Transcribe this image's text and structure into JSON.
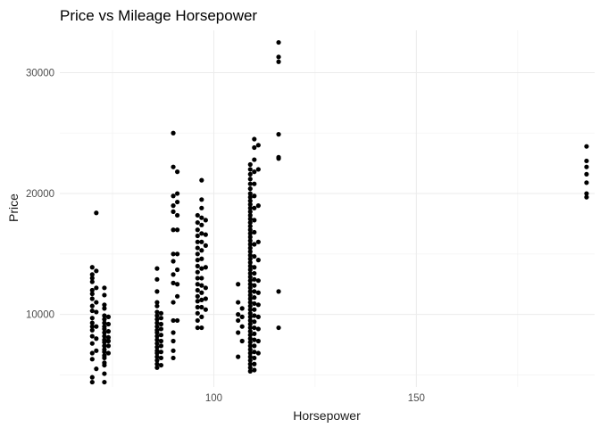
{
  "chart_data": {
    "type": "scatter",
    "title": "Price vs Mileage Horsepower",
    "xlabel": "Horsepower",
    "ylabel": "Price",
    "xlim": [
      62,
      194
    ],
    "ylim": [
      4000,
      33500
    ],
    "x_ticks": [
      100,
      150
    ],
    "x_tick_labels": [
      "100",
      "150"
    ],
    "y_ticks": [
      10000,
      20000,
      30000
    ],
    "y_tick_labels": [
      "10000",
      "20000",
      "30000"
    ],
    "grid": true,
    "theme": "minimal",
    "point_color": "#000000",
    "series": [
      {
        "points": [
          {
            "x": 70,
            "y": 4400
          },
          {
            "x": 70,
            "y": 4800
          },
          {
            "x": 70,
            "y": 6300
          },
          {
            "x": 70,
            "y": 6800
          },
          {
            "x": 70,
            "y": 7600
          },
          {
            "x": 70,
            "y": 8200
          },
          {
            "x": 70,
            "y": 8700
          },
          {
            "x": 70,
            "y": 9000
          },
          {
            "x": 70,
            "y": 9300
          },
          {
            "x": 70,
            "y": 9700
          },
          {
            "x": 70,
            "y": 10300
          },
          {
            "x": 70,
            "y": 10700
          },
          {
            "x": 70,
            "y": 11300
          },
          {
            "x": 70,
            "y": 11700
          },
          {
            "x": 70,
            "y": 12000
          },
          {
            "x": 70,
            "y": 12700
          },
          {
            "x": 70,
            "y": 13000
          },
          {
            "x": 70,
            "y": 13300
          },
          {
            "x": 70,
            "y": 13900
          },
          {
            "x": 71,
            "y": 5500
          },
          {
            "x": 71,
            "y": 7000
          },
          {
            "x": 71,
            "y": 8000
          },
          {
            "x": 71,
            "y": 9000
          },
          {
            "x": 71,
            "y": 10200
          },
          {
            "x": 71,
            "y": 11000
          },
          {
            "x": 71,
            "y": 12200
          },
          {
            "x": 71,
            "y": 13600
          },
          {
            "x": 71,
            "y": 18400
          },
          {
            "x": 73,
            "y": 4400
          },
          {
            "x": 73,
            "y": 5100
          },
          {
            "x": 73,
            "y": 5800
          },
          {
            "x": 73,
            "y": 6000
          },
          {
            "x": 73,
            "y": 6400
          },
          {
            "x": 73,
            "y": 6600
          },
          {
            "x": 73,
            "y": 6900
          },
          {
            "x": 73,
            "y": 7100
          },
          {
            "x": 73,
            "y": 7400
          },
          {
            "x": 73,
            "y": 7700
          },
          {
            "x": 73,
            "y": 7900
          },
          {
            "x": 73,
            "y": 8200
          },
          {
            "x": 73,
            "y": 8500
          },
          {
            "x": 73,
            "y": 8800
          },
          {
            "x": 73,
            "y": 9000
          },
          {
            "x": 73,
            "y": 9300
          },
          {
            "x": 73,
            "y": 9600
          },
          {
            "x": 73,
            "y": 9900
          },
          {
            "x": 73,
            "y": 10500
          },
          {
            "x": 73,
            "y": 10800
          },
          {
            "x": 73,
            "y": 11600
          },
          {
            "x": 73,
            "y": 12200
          },
          {
            "x": 74,
            "y": 6800
          },
          {
            "x": 74,
            "y": 7400
          },
          {
            "x": 74,
            "y": 7800
          },
          {
            "x": 74,
            "y": 8100
          },
          {
            "x": 74,
            "y": 8600
          },
          {
            "x": 74,
            "y": 9200
          },
          {
            "x": 74,
            "y": 9800
          },
          {
            "x": 86,
            "y": 5600
          },
          {
            "x": 86,
            "y": 5900
          },
          {
            "x": 86,
            "y": 6200
          },
          {
            "x": 86,
            "y": 6500
          },
          {
            "x": 86,
            "y": 6800
          },
          {
            "x": 86,
            "y": 7000
          },
          {
            "x": 86,
            "y": 7300
          },
          {
            "x": 86,
            "y": 7600
          },
          {
            "x": 86,
            "y": 7900
          },
          {
            "x": 86,
            "y": 8200
          },
          {
            "x": 86,
            "y": 8500
          },
          {
            "x": 86,
            "y": 8700
          },
          {
            "x": 86,
            "y": 9000
          },
          {
            "x": 86,
            "y": 9300
          },
          {
            "x": 86,
            "y": 9600
          },
          {
            "x": 86,
            "y": 9900
          },
          {
            "x": 86,
            "y": 10200
          },
          {
            "x": 86,
            "y": 10700
          },
          {
            "x": 86,
            "y": 11000
          },
          {
            "x": 86,
            "y": 11900
          },
          {
            "x": 86,
            "y": 12900
          },
          {
            "x": 86,
            "y": 13800
          },
          {
            "x": 87,
            "y": 5800
          },
          {
            "x": 87,
            "y": 6400
          },
          {
            "x": 87,
            "y": 6900
          },
          {
            "x": 87,
            "y": 7400
          },
          {
            "x": 87,
            "y": 7800
          },
          {
            "x": 87,
            "y": 8300
          },
          {
            "x": 87,
            "y": 8800
          },
          {
            "x": 87,
            "y": 9200
          },
          {
            "x": 87,
            "y": 9700
          },
          {
            "x": 87,
            "y": 10100
          },
          {
            "x": 90,
            "y": 6400
          },
          {
            "x": 90,
            "y": 7000
          },
          {
            "x": 90,
            "y": 7800
          },
          {
            "x": 90,
            "y": 8500
          },
          {
            "x": 90,
            "y": 9500
          },
          {
            "x": 90,
            "y": 11000
          },
          {
            "x": 90,
            "y": 12600
          },
          {
            "x": 90,
            "y": 13300
          },
          {
            "x": 90,
            "y": 14400
          },
          {
            "x": 90,
            "y": 15000
          },
          {
            "x": 90,
            "y": 17000
          },
          {
            "x": 90,
            "y": 18500
          },
          {
            "x": 90,
            "y": 19000
          },
          {
            "x": 90,
            "y": 19800
          },
          {
            "x": 90,
            "y": 22200
          },
          {
            "x": 90,
            "y": 25000
          },
          {
            "x": 91,
            "y": 9500
          },
          {
            "x": 91,
            "y": 11500
          },
          {
            "x": 91,
            "y": 12500
          },
          {
            "x": 91,
            "y": 13700
          },
          {
            "x": 91,
            "y": 15000
          },
          {
            "x": 91,
            "y": 17000
          },
          {
            "x": 91,
            "y": 18200
          },
          {
            "x": 91,
            "y": 19300
          },
          {
            "x": 91,
            "y": 20000
          },
          {
            "x": 91,
            "y": 21800
          },
          {
            "x": 96,
            "y": 8900
          },
          {
            "x": 96,
            "y": 9500
          },
          {
            "x": 96,
            "y": 10100
          },
          {
            "x": 96,
            "y": 10600
          },
          {
            "x": 96,
            "y": 11100
          },
          {
            "x": 96,
            "y": 11500
          },
          {
            "x": 96,
            "y": 12000
          },
          {
            "x": 96,
            "y": 12500
          },
          {
            "x": 96,
            "y": 13000
          },
          {
            "x": 96,
            "y": 13500
          },
          {
            "x": 96,
            "y": 14000
          },
          {
            "x": 96,
            "y": 14500
          },
          {
            "x": 96,
            "y": 15000
          },
          {
            "x": 96,
            "y": 15500
          },
          {
            "x": 96,
            "y": 16000
          },
          {
            "x": 96,
            "y": 16500
          },
          {
            "x": 96,
            "y": 17000
          },
          {
            "x": 96,
            "y": 17600
          },
          {
            "x": 96,
            "y": 18200
          },
          {
            "x": 97,
            "y": 8900
          },
          {
            "x": 97,
            "y": 9800
          },
          {
            "x": 97,
            "y": 10600
          },
          {
            "x": 97,
            "y": 11200
          },
          {
            "x": 97,
            "y": 11800
          },
          {
            "x": 97,
            "y": 12400
          },
          {
            "x": 97,
            "y": 13000
          },
          {
            "x": 97,
            "y": 13800
          },
          {
            "x": 97,
            "y": 14600
          },
          {
            "x": 97,
            "y": 15300
          },
          {
            "x": 97,
            "y": 16000
          },
          {
            "x": 97,
            "y": 16700
          },
          {
            "x": 97,
            "y": 17400
          },
          {
            "x": 97,
            "y": 18000
          },
          {
            "x": 97,
            "y": 18800
          },
          {
            "x": 97,
            "y": 19500
          },
          {
            "x": 97,
            "y": 21100
          },
          {
            "x": 98,
            "y": 10400
          },
          {
            "x": 98,
            "y": 11300
          },
          {
            "x": 98,
            "y": 12200
          },
          {
            "x": 98,
            "y": 13900
          },
          {
            "x": 98,
            "y": 15700
          },
          {
            "x": 98,
            "y": 16600
          },
          {
            "x": 98,
            "y": 17800
          },
          {
            "x": 106,
            "y": 6500
          },
          {
            "x": 106,
            "y": 8500
          },
          {
            "x": 106,
            "y": 9500
          },
          {
            "x": 106,
            "y": 10000
          },
          {
            "x": 106,
            "y": 11000
          },
          {
            "x": 106,
            "y": 12500
          },
          {
            "x": 107,
            "y": 7800
          },
          {
            "x": 107,
            "y": 9000
          },
          {
            "x": 107,
            "y": 9800
          },
          {
            "x": 107,
            "y": 10500
          },
          {
            "x": 109,
            "y": 5300
          },
          {
            "x": 109,
            "y": 5600
          },
          {
            "x": 109,
            "y": 5900
          },
          {
            "x": 109,
            "y": 6200
          },
          {
            "x": 109,
            "y": 6500
          },
          {
            "x": 109,
            "y": 6800
          },
          {
            "x": 109,
            "y": 7100
          },
          {
            "x": 109,
            "y": 7400
          },
          {
            "x": 109,
            "y": 7700
          },
          {
            "x": 109,
            "y": 8000
          },
          {
            "x": 109,
            "y": 8300
          },
          {
            "x": 109,
            "y": 8600
          },
          {
            "x": 109,
            "y": 8900
          },
          {
            "x": 109,
            "y": 9200
          },
          {
            "x": 109,
            "y": 9500
          },
          {
            "x": 109,
            "y": 9800
          },
          {
            "x": 109,
            "y": 10100
          },
          {
            "x": 109,
            "y": 10400
          },
          {
            "x": 109,
            "y": 10700
          },
          {
            "x": 109,
            "y": 11000
          },
          {
            "x": 109,
            "y": 11300
          },
          {
            "x": 109,
            "y": 11600
          },
          {
            "x": 109,
            "y": 11900
          },
          {
            "x": 109,
            "y": 12200
          },
          {
            "x": 109,
            "y": 12500
          },
          {
            "x": 109,
            "y": 12800
          },
          {
            "x": 109,
            "y": 13100
          },
          {
            "x": 109,
            "y": 13400
          },
          {
            "x": 109,
            "y": 13700
          },
          {
            "x": 109,
            "y": 14000
          },
          {
            "x": 109,
            "y": 14300
          },
          {
            "x": 109,
            "y": 14600
          },
          {
            "x": 109,
            "y": 14900
          },
          {
            "x": 109,
            "y": 15200
          },
          {
            "x": 109,
            "y": 15500
          },
          {
            "x": 109,
            "y": 15800
          },
          {
            "x": 109,
            "y": 16100
          },
          {
            "x": 109,
            "y": 16400
          },
          {
            "x": 109,
            "y": 16700
          },
          {
            "x": 109,
            "y": 17000
          },
          {
            "x": 109,
            "y": 17300
          },
          {
            "x": 109,
            "y": 17600
          },
          {
            "x": 109,
            "y": 17900
          },
          {
            "x": 109,
            "y": 18200
          },
          {
            "x": 109,
            "y": 18500
          },
          {
            "x": 109,
            "y": 18800
          },
          {
            "x": 109,
            "y": 19100
          },
          {
            "x": 109,
            "y": 19400
          },
          {
            "x": 109,
            "y": 19700
          },
          {
            "x": 109,
            "y": 20000
          },
          {
            "x": 109,
            "y": 20400
          },
          {
            "x": 109,
            "y": 20800
          },
          {
            "x": 109,
            "y": 21200
          },
          {
            "x": 109,
            "y": 21600
          },
          {
            "x": 109,
            "y": 22000
          },
          {
            "x": 109,
            "y": 22400
          },
          {
            "x": 110,
            "y": 5400
          },
          {
            "x": 110,
            "y": 5900
          },
          {
            "x": 110,
            "y": 6400
          },
          {
            "x": 110,
            "y": 6900
          },
          {
            "x": 110,
            "y": 7400
          },
          {
            "x": 110,
            "y": 7900
          },
          {
            "x": 110,
            "y": 8400
          },
          {
            "x": 110,
            "y": 8900
          },
          {
            "x": 110,
            "y": 9400
          },
          {
            "x": 110,
            "y": 9900
          },
          {
            "x": 110,
            "y": 10400
          },
          {
            "x": 110,
            "y": 10900
          },
          {
            "x": 110,
            "y": 11400
          },
          {
            "x": 110,
            "y": 11900
          },
          {
            "x": 110,
            "y": 12400
          },
          {
            "x": 110,
            "y": 12900
          },
          {
            "x": 110,
            "y": 13400
          },
          {
            "x": 110,
            "y": 13900
          },
          {
            "x": 110,
            "y": 14800
          },
          {
            "x": 110,
            "y": 15800
          },
          {
            "x": 110,
            "y": 16800
          },
          {
            "x": 110,
            "y": 17800
          },
          {
            "x": 110,
            "y": 18800
          },
          {
            "x": 110,
            "y": 19800
          },
          {
            "x": 110,
            "y": 20800
          },
          {
            "x": 110,
            "y": 21800
          },
          {
            "x": 110,
            "y": 22800
          },
          {
            "x": 110,
            "y": 23800
          },
          {
            "x": 110,
            "y": 24500
          },
          {
            "x": 111,
            "y": 6800
          },
          {
            "x": 111,
            "y": 7800
          },
          {
            "x": 111,
            "y": 8800
          },
          {
            "x": 111,
            "y": 9800
          },
          {
            "x": 111,
            "y": 10800
          },
          {
            "x": 111,
            "y": 11800
          },
          {
            "x": 111,
            "y": 12800
          },
          {
            "x": 111,
            "y": 14500
          },
          {
            "x": 111,
            "y": 16000
          },
          {
            "x": 111,
            "y": 19000
          },
          {
            "x": 111,
            "y": 22000
          },
          {
            "x": 111,
            "y": 24000
          },
          {
            "x": 116,
            "y": 8900
          },
          {
            "x": 116,
            "y": 11900
          },
          {
            "x": 116,
            "y": 22900
          },
          {
            "x": 116,
            "y": 23000
          },
          {
            "x": 116,
            "y": 24900
          },
          {
            "x": 116,
            "y": 30900
          },
          {
            "x": 116,
            "y": 31300
          },
          {
            "x": 116,
            "y": 32500
          },
          {
            "x": 192,
            "y": 19700
          },
          {
            "x": 192,
            "y": 20000
          },
          {
            "x": 192,
            "y": 20900
          },
          {
            "x": 192,
            "y": 21600
          },
          {
            "x": 192,
            "y": 22200
          },
          {
            "x": 192,
            "y": 22700
          },
          {
            "x": 192,
            "y": 23900
          }
        ]
      }
    ]
  }
}
